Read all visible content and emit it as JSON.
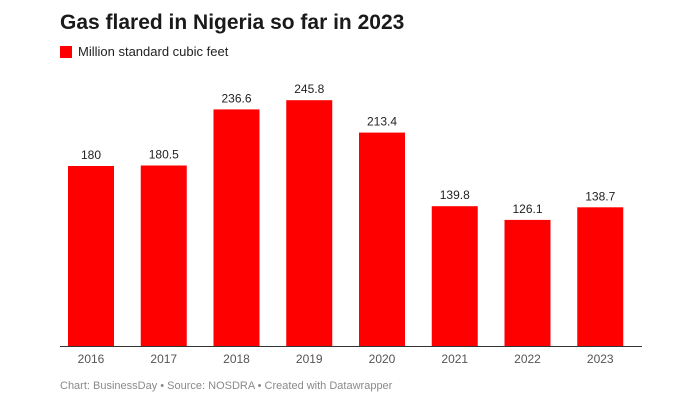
{
  "chart_data": {
    "type": "bar",
    "title": "Gas flared in Nigeria so far in 2023",
    "legend": [
      {
        "name": "Million standard cubic feet",
        "color": "#ff0000"
      }
    ],
    "categories": [
      "2016",
      "2017",
      "2018",
      "2019",
      "2020",
      "2021",
      "2022",
      "2023"
    ],
    "series": [
      {
        "name": "Million standard cubic feet",
        "values": [
          180,
          180.5,
          236.6,
          245.8,
          213.4,
          139.8,
          126.1,
          138.7
        ]
      }
    ],
    "value_labels": [
      "180",
      "180.5",
      "236.6",
      "245.8",
      "213.4",
      "139.8",
      "126.1",
      "138.7"
    ],
    "ylim": [
      0,
      270
    ],
    "xlabel": "",
    "ylabel": "",
    "grid": false,
    "legend_position": "top-left",
    "bar_color": "#ff0000"
  },
  "footer": {
    "text": "Chart: BusinessDay • Source: NOSDRA • Created with Datawrapper"
  }
}
